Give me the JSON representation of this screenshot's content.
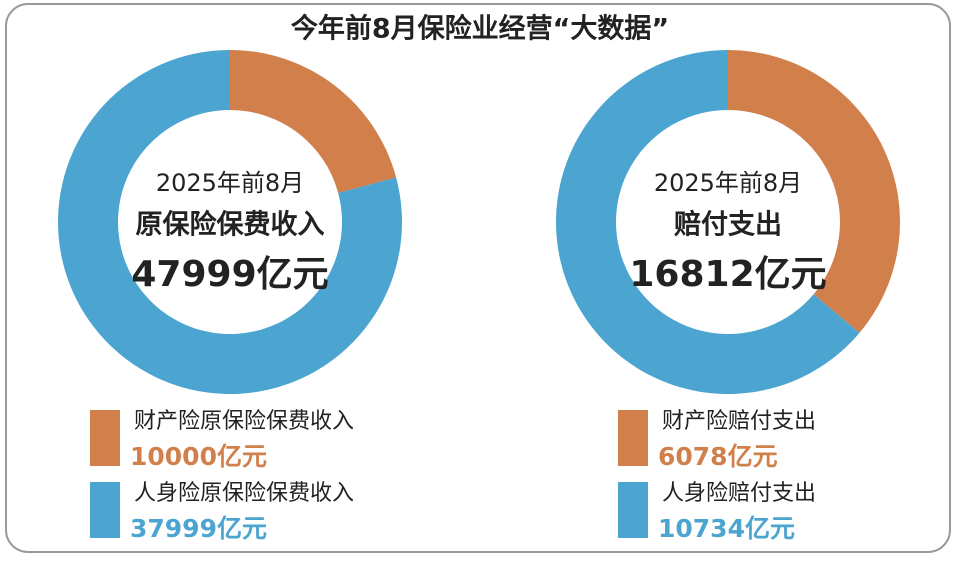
{
  "title": "今年前8月保险业经营“大数据”",
  "chart_data": [
    {
      "type": "donut",
      "center_lines": [
        "2025年前8月",
        "原保险保费收入",
        "47999亿元"
      ],
      "categories": [
        "财产险原保险保费收入",
        "人身险原保险保费收入"
      ],
      "values": [
        10000,
        37999
      ],
      "value_labels": [
        "10000亿元",
        "37999亿元"
      ],
      "colors": [
        "#d2804b",
        "#4ba5d0"
      ]
    },
    {
      "type": "donut",
      "center_lines": [
        "2025年前8月",
        "赔付支出",
        "16812亿元"
      ],
      "categories": [
        "财产险赔付支出",
        "人身险赔付支出"
      ],
      "values": [
        6078,
        10734
      ],
      "value_labels": [
        "6078亿元",
        "10734亿元"
      ],
      "colors": [
        "#d2804b",
        "#4ba5d0"
      ]
    }
  ]
}
